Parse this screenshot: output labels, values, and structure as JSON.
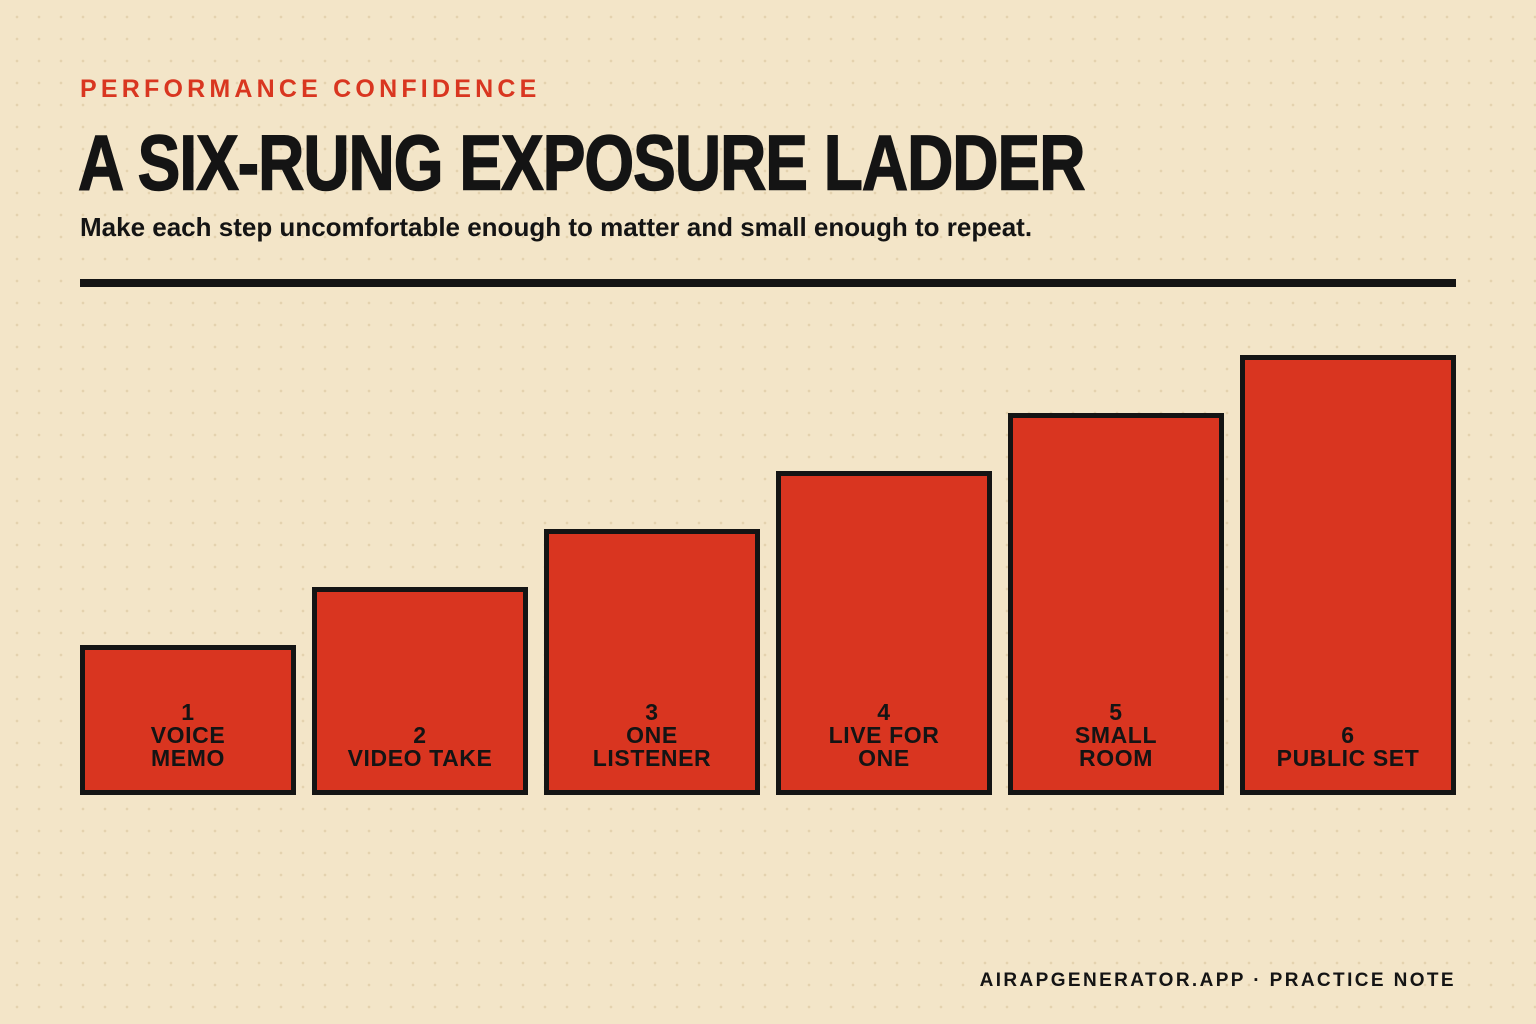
{
  "header": {
    "eyebrow": "PERFORMANCE CONFIDENCE",
    "title": "A SIX-RUNG EXPOSURE LADDER",
    "subtitle": "Make each step uncomfortable enough to matter and small enough to repeat."
  },
  "ladder": {
    "rungs": [
      {
        "number": "1",
        "label": "VOICE MEMO",
        "level": 1
      },
      {
        "number": "2",
        "label": "VIDEO TAKE",
        "level": 2
      },
      {
        "number": "3",
        "label": "ONE LISTENER",
        "level": 3
      },
      {
        "number": "4",
        "label": "LIVE FOR ONE",
        "level": 4
      },
      {
        "number": "5",
        "label": "SMALL ROOM",
        "level": 5
      },
      {
        "number": "6",
        "label": "PUBLIC SET",
        "level": 6
      }
    ],
    "fill_color": "#d93520",
    "border_color": "#141414"
  },
  "footer": {
    "text": "AIRAPGENERATOR.APP · PRACTICE NOTE"
  },
  "colors": {
    "background": "#f3e5c8",
    "accent": "#d93620",
    "ink": "#141414"
  }
}
